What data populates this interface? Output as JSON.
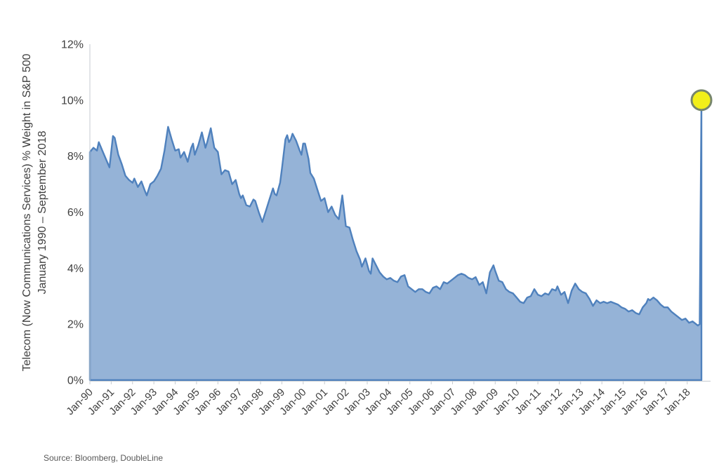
{
  "chart": {
    "y_axis_title_line1": "Telecom (Now Communications Services) % Weight in S&P 500",
    "y_axis_title_line2": "January 1990 – September 2018",
    "source": "Source: Bloomberg, DoubleLine"
  },
  "colors": {
    "area_fill": "#95b3d7",
    "area_line": "#4f81bd",
    "axis_line": "#c6cbd0",
    "tick_mark": "#c6cbd0",
    "label_text": "#3f3f3f",
    "source_text": "#595959",
    "highlight_fill": "#f2ef1a",
    "highlight_stroke": "#77866c",
    "background": "#ffffff"
  },
  "chart_data": {
    "type": "area",
    "title": "",
    "series_name": "Telecom (Now Communications Services) % Weight in S&P 500",
    "xlabel": "",
    "ylabel": "Telecom (Now Communications Services) % Weight in S&P 500, January 1990 – September 2018",
    "x_unit": "months since Jan-1990",
    "xlim_months": [
      0,
      344
    ],
    "ylim": [
      0,
      12
    ],
    "grid": false,
    "legend": "none",
    "y_ticks": [
      {
        "label": "0%",
        "value": 0
      },
      {
        "label": "2%",
        "value": 2
      },
      {
        "label": "4%",
        "value": 4
      },
      {
        "label": "6%",
        "value": 6
      },
      {
        "label": "8%",
        "value": 8
      },
      {
        "label": "10%",
        "value": 10
      },
      {
        "label": "12%",
        "value": 12
      }
    ],
    "x_ticks": [
      {
        "label": "Jan-90",
        "month": 0
      },
      {
        "label": "Jan-91",
        "month": 12
      },
      {
        "label": "Jan-92",
        "month": 24
      },
      {
        "label": "Jan-93",
        "month": 36
      },
      {
        "label": "Jan-94",
        "month": 48
      },
      {
        "label": "Jan-95",
        "month": 60
      },
      {
        "label": "Jan-96",
        "month": 72
      },
      {
        "label": "Jan-97",
        "month": 84
      },
      {
        "label": "Jan-98",
        "month": 96
      },
      {
        "label": "Jan-99",
        "month": 108
      },
      {
        "label": "Jan-00",
        "month": 120
      },
      {
        "label": "Jan-01",
        "month": 132
      },
      {
        "label": "Jan-02",
        "month": 144
      },
      {
        "label": "Jan-03",
        "month": 156
      },
      {
        "label": "Jan-04",
        "month": 168
      },
      {
        "label": "Jan-05",
        "month": 180
      },
      {
        "label": "Jan-06",
        "month": 192
      },
      {
        "label": "Jan-07",
        "month": 204
      },
      {
        "label": "Jan-08",
        "month": 216
      },
      {
        "label": "Jan-09",
        "month": 228
      },
      {
        "label": "Jan-10",
        "month": 240
      },
      {
        "label": "Jan-11",
        "month": 252
      },
      {
        "label": "Jan-12",
        "month": 264
      },
      {
        "label": "Jan-13",
        "month": 276
      },
      {
        "label": "Jan-14",
        "month": 288
      },
      {
        "label": "Jan-15",
        "month": 300
      },
      {
        "label": "Jan-16",
        "month": 312
      },
      {
        "label": "Jan-17",
        "month": 324
      },
      {
        "label": "Jan-18",
        "month": 336
      }
    ],
    "points": [
      [
        0,
        8.15
      ],
      [
        2,
        8.3
      ],
      [
        4,
        8.2
      ],
      [
        5,
        8.5
      ],
      [
        7,
        8.2
      ],
      [
        9,
        7.9
      ],
      [
        11,
        7.6
      ],
      [
        13,
        8.72
      ],
      [
        14,
        8.65
      ],
      [
        16,
        8.05
      ],
      [
        18,
        7.7
      ],
      [
        20,
        7.3
      ],
      [
        22,
        7.15
      ],
      [
        24,
        7.05
      ],
      [
        25,
        7.2
      ],
      [
        27,
        6.9
      ],
      [
        29,
        7.1
      ],
      [
        31,
        6.75
      ],
      [
        32,
        6.6
      ],
      [
        34,
        7.0
      ],
      [
        36,
        7.1
      ],
      [
        38,
        7.3
      ],
      [
        40,
        7.55
      ],
      [
        42,
        8.2
      ],
      [
        44,
        9.05
      ],
      [
        46,
        8.6
      ],
      [
        48,
        8.2
      ],
      [
        50,
        8.25
      ],
      [
        51,
        7.95
      ],
      [
        53,
        8.15
      ],
      [
        55,
        7.8
      ],
      [
        57,
        8.3
      ],
      [
        58,
        8.45
      ],
      [
        59,
        8.05
      ],
      [
        61,
        8.4
      ],
      [
        63,
        8.85
      ],
      [
        65,
        8.3
      ],
      [
        66,
        8.5
      ],
      [
        68,
        9.0
      ],
      [
        70,
        8.3
      ],
      [
        72,
        8.15
      ],
      [
        74,
        7.35
      ],
      [
        76,
        7.5
      ],
      [
        78,
        7.45
      ],
      [
        80,
        7.0
      ],
      [
        82,
        7.15
      ],
      [
        84,
        6.65
      ],
      [
        85,
        6.5
      ],
      [
        86,
        6.6
      ],
      [
        88,
        6.25
      ],
      [
        90,
        6.2
      ],
      [
        92,
        6.45
      ],
      [
        93,
        6.4
      ],
      [
        95,
        6.0
      ],
      [
        97,
        5.65
      ],
      [
        99,
        6.05
      ],
      [
        101,
        6.45
      ],
      [
        103,
        6.85
      ],
      [
        104,
        6.65
      ],
      [
        105,
        6.6
      ],
      [
        107,
        7.05
      ],
      [
        108,
        7.55
      ],
      [
        110,
        8.6
      ],
      [
        111,
        8.75
      ],
      [
        112,
        8.5
      ],
      [
        113,
        8.6
      ],
      [
        114,
        8.8
      ],
      [
        116,
        8.55
      ],
      [
        118,
        8.2
      ],
      [
        119,
        8.05
      ],
      [
        120,
        8.45
      ],
      [
        121,
        8.45
      ],
      [
        123,
        7.9
      ],
      [
        124,
        7.4
      ],
      [
        126,
        7.2
      ],
      [
        128,
        6.8
      ],
      [
        130,
        6.4
      ],
      [
        132,
        6.5
      ],
      [
        134,
        6.0
      ],
      [
        136,
        6.2
      ],
      [
        138,
        5.9
      ],
      [
        140,
        5.75
      ],
      [
        142,
        6.6
      ],
      [
        144,
        5.5
      ],
      [
        146,
        5.45
      ],
      [
        148,
        5.0
      ],
      [
        150,
        4.6
      ],
      [
        152,
        4.3
      ],
      [
        153,
        4.05
      ],
      [
        155,
        4.35
      ],
      [
        157,
        3.9
      ],
      [
        158,
        3.8
      ],
      [
        159,
        4.35
      ],
      [
        161,
        4.1
      ],
      [
        163,
        3.85
      ],
      [
        165,
        3.7
      ],
      [
        167,
        3.6
      ],
      [
        169,
        3.65
      ],
      [
        171,
        3.55
      ],
      [
        173,
        3.5
      ],
      [
        175,
        3.7
      ],
      [
        177,
        3.75
      ],
      [
        179,
        3.35
      ],
      [
        181,
        3.25
      ],
      [
        183,
        3.15
      ],
      [
        185,
        3.25
      ],
      [
        187,
        3.25
      ],
      [
        189,
        3.15
      ],
      [
        191,
        3.1
      ],
      [
        193,
        3.3
      ],
      [
        195,
        3.35
      ],
      [
        197,
        3.25
      ],
      [
        199,
        3.5
      ],
      [
        201,
        3.45
      ],
      [
        203,
        3.55
      ],
      [
        205,
        3.65
      ],
      [
        207,
        3.75
      ],
      [
        209,
        3.8
      ],
      [
        211,
        3.75
      ],
      [
        213,
        3.65
      ],
      [
        215,
        3.6
      ],
      [
        217,
        3.68
      ],
      [
        219,
        3.4
      ],
      [
        221,
        3.5
      ],
      [
        223,
        3.1
      ],
      [
        225,
        3.85
      ],
      [
        227,
        4.1
      ],
      [
        228,
        3.9
      ],
      [
        230,
        3.55
      ],
      [
        232,
        3.5
      ],
      [
        234,
        3.25
      ],
      [
        236,
        3.15
      ],
      [
        238,
        3.1
      ],
      [
        240,
        2.95
      ],
      [
        242,
        2.8
      ],
      [
        244,
        2.75
      ],
      [
        246,
        2.95
      ],
      [
        248,
        3.0
      ],
      [
        250,
        3.25
      ],
      [
        252,
        3.05
      ],
      [
        254,
        3.0
      ],
      [
        256,
        3.1
      ],
      [
        258,
        3.05
      ],
      [
        260,
        3.25
      ],
      [
        262,
        3.2
      ],
      [
        263,
        3.35
      ],
      [
        265,
        3.05
      ],
      [
        267,
        3.15
      ],
      [
        269,
        2.75
      ],
      [
        271,
        3.2
      ],
      [
        273,
        3.45
      ],
      [
        275,
        3.25
      ],
      [
        277,
        3.15
      ],
      [
        279,
        3.1
      ],
      [
        281,
        2.9
      ],
      [
        283,
        2.65
      ],
      [
        285,
        2.85
      ],
      [
        287,
        2.75
      ],
      [
        289,
        2.8
      ],
      [
        291,
        2.75
      ],
      [
        293,
        2.8
      ],
      [
        295,
        2.75
      ],
      [
        297,
        2.7
      ],
      [
        299,
        2.6
      ],
      [
        301,
        2.55
      ],
      [
        303,
        2.45
      ],
      [
        305,
        2.5
      ],
      [
        307,
        2.4
      ],
      [
        309,
        2.35
      ],
      [
        311,
        2.6
      ],
      [
        313,
        2.75
      ],
      [
        314,
        2.9
      ],
      [
        315,
        2.85
      ],
      [
        317,
        2.95
      ],
      [
        319,
        2.85
      ],
      [
        321,
        2.7
      ],
      [
        323,
        2.6
      ],
      [
        325,
        2.6
      ],
      [
        327,
        2.45
      ],
      [
        329,
        2.35
      ],
      [
        331,
        2.25
      ],
      [
        333,
        2.15
      ],
      [
        335,
        2.2
      ],
      [
        337,
        2.05
      ],
      [
        339,
        2.1
      ],
      [
        341,
        2.0
      ],
      [
        342,
        1.95
      ],
      [
        343,
        2.0
      ],
      [
        344,
        10.0
      ]
    ],
    "highlight": {
      "month": 344,
      "value": 10.0,
      "marker": "yellow-circle"
    }
  }
}
